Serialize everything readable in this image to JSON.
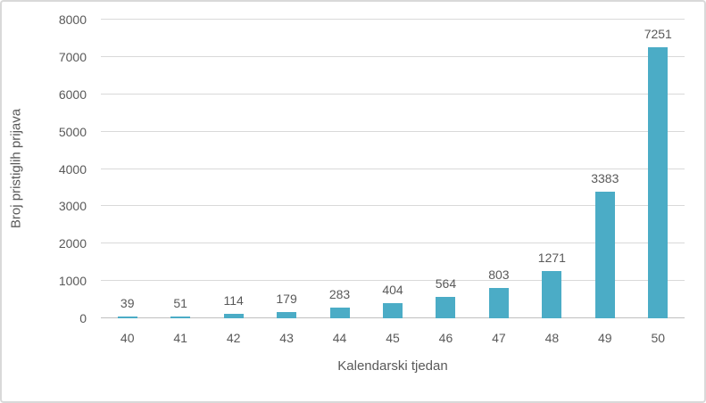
{
  "chart_data": {
    "type": "bar",
    "title": "",
    "categories": [
      "40",
      "41",
      "42",
      "43",
      "44",
      "45",
      "46",
      "47",
      "48",
      "49",
      "50"
    ],
    "values": [
      39,
      51,
      114,
      179,
      283,
      404,
      564,
      803,
      1271,
      3383,
      7251
    ],
    "data_labels": [
      "39",
      "51",
      "114",
      "179",
      "283",
      "404",
      "564",
      "803",
      "1271",
      "3383",
      "7251"
    ],
    "xlabel": "Kalendarski tjedan",
    "ylabel": "Broj pristiglih prijava",
    "ylim": [
      0,
      8000
    ],
    "yticks": [
      0,
      1000,
      2000,
      3000,
      4000,
      5000,
      6000,
      7000,
      8000
    ],
    "grid": true,
    "legend": false,
    "colors": {
      "bar": "#4BACC6",
      "text": "#595959",
      "gridline": "#D9D9D9",
      "axis_line": "#BFBFBF",
      "background": "#FFFFFF",
      "frame_border": "#D9D9D9"
    }
  }
}
